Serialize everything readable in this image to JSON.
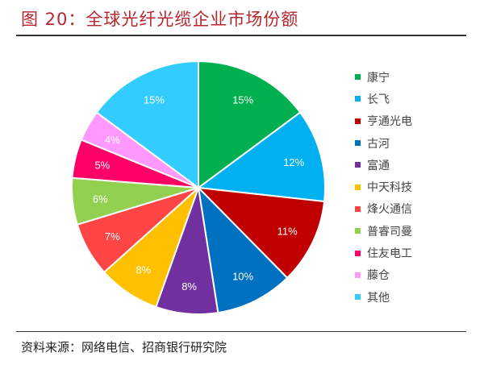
{
  "title": "图 20：全球光纤光缆企业市场份额",
  "source": "资料来源：网络电信、招商银行研究院",
  "chart_data": {
    "type": "pie",
    "title": "全球光纤光缆企业市场份额",
    "start": "top",
    "direction": "clockwise",
    "legend_position": "right",
    "categories": [
      "康宁",
      "长飞",
      "亨通光电",
      "古河",
      "富通",
      "中天科技",
      "烽火通信",
      "普睿司曼",
      "住友电工",
      "藤仓",
      "其他"
    ],
    "values": [
      15,
      12,
      11,
      10,
      8,
      8,
      7,
      6,
      5,
      4,
      15
    ],
    "labels": [
      "15%",
      "12%",
      "11%",
      "10%",
      "8%",
      "8%",
      "7%",
      "6%",
      "5%",
      "4%",
      "15%"
    ],
    "colors": [
      "#00B050",
      "#00B0F0",
      "#C00000",
      "#0070C0",
      "#7030A0",
      "#FFC000",
      "#FF4545",
      "#92D050",
      "#FF0066",
      "#FF99FF",
      "#33CCFF"
    ]
  }
}
